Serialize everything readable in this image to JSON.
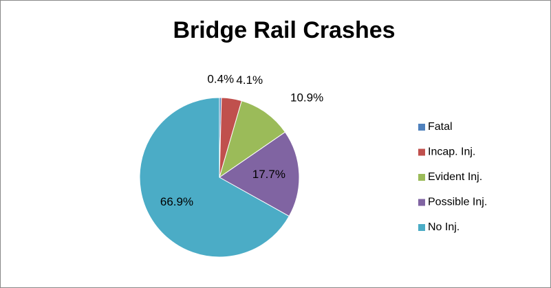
{
  "chart_data": {
    "type": "pie",
    "title": "Bridge Rail Crashes",
    "categories": [
      "Fatal",
      "Incap. Inj.",
      "Evident Inj.",
      "Possible Inj.",
      "No Inj."
    ],
    "values": [
      0.4,
      4.1,
      10.9,
      17.7,
      66.9
    ],
    "value_labels": [
      "0.4%",
      "4.1%",
      "10.9%",
      "17.7%",
      "66.9%"
    ],
    "colors": [
      "#4f81bd",
      "#c0504d",
      "#9bbb59",
      "#8064a2",
      "#4bacc6"
    ],
    "legend": "right"
  }
}
